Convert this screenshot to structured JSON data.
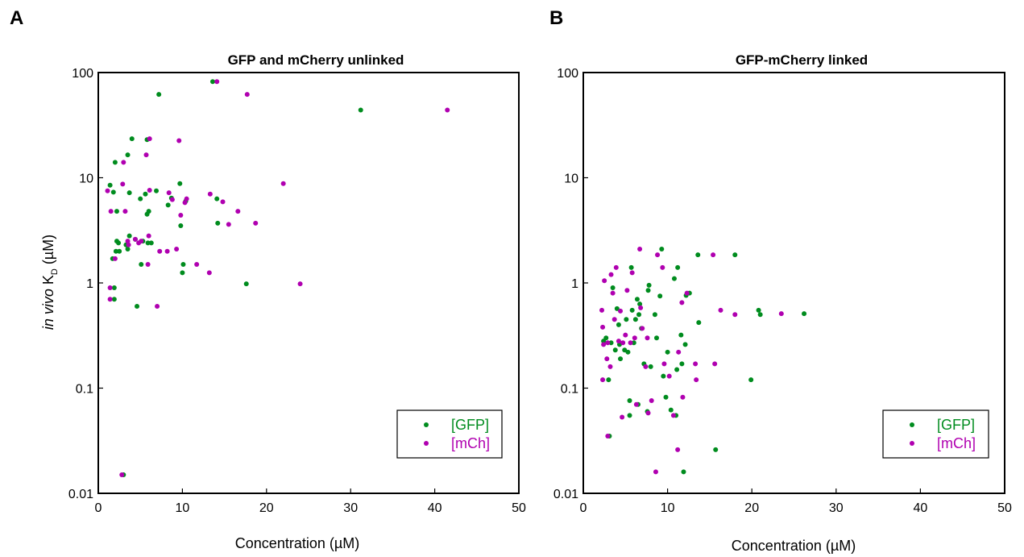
{
  "chart_data": [
    {
      "type": "scatter",
      "panel_label": "A",
      "title": "GFP and mCherry unlinked",
      "xlabel": "Concentration (µM)",
      "ylabel_italic": "in vivo",
      "ylabel_main": " K",
      "ylabel_sub": "D",
      "ylabel_unit": " (µM)",
      "xlim": [
        0,
        50
      ],
      "ylim": [
        0.01,
        100
      ],
      "yscale": "log",
      "x_ticks": [
        0,
        10,
        20,
        30,
        40,
        50
      ],
      "x_tick_labels": [
        "0",
        "10",
        "20",
        "30",
        "40",
        "50"
      ],
      "y_ticks": [
        0.01,
        0.1,
        1,
        10,
        100
      ],
      "y_tick_labels": [
        "0.01",
        "0.1",
        "1",
        "10",
        "100"
      ],
      "grid": false,
      "legend_position": "bottom-right",
      "series": [
        {
          "name": "[GFP]",
          "color": "#008c1e",
          "points": [
            [
              1.4,
              8.5
            ],
            [
              1.8,
              7.3
            ],
            [
              2.0,
              14.0
            ],
            [
              2.2,
              4.8
            ],
            [
              1.7,
              1.7
            ],
            [
              2.1,
              2.0
            ],
            [
              2.2,
              2.5
            ],
            [
              2.4,
              2.4
            ],
            [
              2.5,
              2.0
            ],
            [
              1.9,
              0.9
            ],
            [
              1.9,
              0.7
            ],
            [
              3.0,
              0.015
            ],
            [
              3.3,
              2.3
            ],
            [
              3.5,
              2.1
            ],
            [
              3.5,
              16.5
            ],
            [
              3.7,
              2.8
            ],
            [
              3.7,
              7.2
            ],
            [
              4.0,
              23.5
            ],
            [
              4.4,
              2.6
            ],
            [
              4.6,
              0.6
            ],
            [
              5.0,
              6.3
            ],
            [
              5.1,
              1.5
            ],
            [
              5.3,
              2.5
            ],
            [
              5.6,
              7.0
            ],
            [
              5.8,
              4.5
            ],
            [
              5.8,
              23.0
            ],
            [
              5.9,
              2.4
            ],
            [
              6.0,
              4.8
            ],
            [
              6.3,
              2.4
            ],
            [
              6.9,
              7.5
            ],
            [
              7.2,
              62.0
            ],
            [
              8.3,
              5.5
            ],
            [
              8.7,
              6.4
            ],
            [
              9.7,
              8.8
            ],
            [
              9.8,
              3.5
            ],
            [
              10.0,
              1.25
            ],
            [
              10.1,
              1.5
            ],
            [
              10.4,
              6.0
            ],
            [
              13.6,
              82.0
            ],
            [
              14.1,
              6.3
            ],
            [
              14.2,
              3.7
            ],
            [
              17.6,
              0.98
            ],
            [
              31.2,
              44.0
            ]
          ]
        },
        {
          "name": "[mCh]",
          "color": "#b000b0",
          "points": [
            [
              1.1,
              7.5
            ],
            [
              1.4,
              0.9
            ],
            [
              1.4,
              0.7
            ],
            [
              1.5,
              4.8
            ],
            [
              2.0,
              1.7
            ],
            [
              2.8,
              0.015
            ],
            [
              2.9,
              8.7
            ],
            [
              3.0,
              14.0
            ],
            [
              3.2,
              4.8
            ],
            [
              3.5,
              2.5
            ],
            [
              3.6,
              2.3
            ],
            [
              4.4,
              2.6
            ],
            [
              4.8,
              2.4
            ],
            [
              5.1,
              2.5
            ],
            [
              5.7,
              16.5
            ],
            [
              5.9,
              1.5
            ],
            [
              6.0,
              2.8
            ],
            [
              6.1,
              7.6
            ],
            [
              6.1,
              23.5
            ],
            [
              7.0,
              0.6
            ],
            [
              7.3,
              2.0
            ],
            [
              8.2,
              2.0
            ],
            [
              8.4,
              7.2
            ],
            [
              8.8,
              6.2
            ],
            [
              9.3,
              2.1
            ],
            [
              9.6,
              22.5
            ],
            [
              9.8,
              4.4
            ],
            [
              10.3,
              5.8
            ],
            [
              10.5,
              6.3
            ],
            [
              11.7,
              1.5
            ],
            [
              13.2,
              1.25
            ],
            [
              13.3,
              7.0
            ],
            [
              14.1,
              82.0
            ],
            [
              14.8,
              5.9
            ],
            [
              15.5,
              3.6
            ],
            [
              16.6,
              4.8
            ],
            [
              17.7,
              62.0
            ],
            [
              18.7,
              3.7
            ],
            [
              22.0,
              8.8
            ],
            [
              24.0,
              0.98
            ],
            [
              41.5,
              44.0
            ]
          ]
        }
      ]
    },
    {
      "type": "scatter",
      "panel_label": "B",
      "title": "GFP-mCherry linked",
      "xlabel": "Concentration (µM)",
      "xlim": [
        0,
        50
      ],
      "ylim": [
        0.01,
        100
      ],
      "yscale": "log",
      "x_ticks": [
        0,
        10,
        20,
        30,
        40,
        50
      ],
      "x_tick_labels": [
        "0",
        "10",
        "20",
        "30",
        "40",
        "50"
      ],
      "y_ticks": [
        0.01,
        0.1,
        1,
        10,
        100
      ],
      "y_tick_labels": [
        "0.01",
        "0.1",
        "1",
        "10",
        "100"
      ],
      "grid": false,
      "legend_position": "bottom-right",
      "series": [
        {
          "name": "[GFP]",
          "color": "#008c1e",
          "points": [
            [
              2.4,
              0.28
            ],
            [
              2.7,
              0.3
            ],
            [
              3.0,
              0.12
            ],
            [
              3.1,
              0.035
            ],
            [
              3.3,
              0.27
            ],
            [
              3.5,
              0.9
            ],
            [
              3.8,
              0.23
            ],
            [
              4.0,
              0.57
            ],
            [
              4.2,
              0.4
            ],
            [
              4.3,
              0.26
            ],
            [
              4.4,
              0.19
            ],
            [
              4.9,
              0.23
            ],
            [
              5.1,
              0.45
            ],
            [
              5.3,
              0.22
            ],
            [
              5.5,
              0.076
            ],
            [
              5.5,
              0.055
            ],
            [
              5.7,
              1.4
            ],
            [
              5.8,
              0.55
            ],
            [
              6.0,
              0.27
            ],
            [
              6.2,
              0.45
            ],
            [
              6.4,
              0.7
            ],
            [
              6.5,
              0.07
            ],
            [
              6.6,
              0.5
            ],
            [
              6.7,
              0.63
            ],
            [
              6.9,
              0.37
            ],
            [
              7.2,
              0.17
            ],
            [
              7.6,
              0.06
            ],
            [
              7.7,
              0.85
            ],
            [
              7.8,
              0.95
            ],
            [
              8.0,
              0.16
            ],
            [
              8.5,
              0.5
            ],
            [
              8.7,
              0.3
            ],
            [
              9.1,
              0.75
            ],
            [
              9.3,
              2.1
            ],
            [
              9.5,
              0.13
            ],
            [
              9.8,
              0.082
            ],
            [
              10.0,
              0.22
            ],
            [
              10.4,
              0.062
            ],
            [
              10.8,
              1.1
            ],
            [
              11.0,
              0.055
            ],
            [
              11.1,
              0.15
            ],
            [
              11.2,
              1.4
            ],
            [
              11.6,
              0.32
            ],
            [
              11.7,
              0.17
            ],
            [
              11.9,
              0.016
            ],
            [
              12.1,
              0.26
            ],
            [
              12.2,
              0.76
            ],
            [
              12.6,
              0.8
            ],
            [
              13.6,
              1.85
            ],
            [
              13.7,
              0.42
            ],
            [
              15.7,
              0.026
            ],
            [
              18.0,
              1.85
            ],
            [
              19.9,
              0.12
            ],
            [
              20.8,
              0.55
            ],
            [
              21.0,
              0.5
            ],
            [
              26.2,
              0.51
            ]
          ]
        },
        {
          "name": "[mCh]",
          "color": "#b000b0",
          "points": [
            [
              2.2,
              0.55
            ],
            [
              2.3,
              0.38
            ],
            [
              2.3,
              0.12
            ],
            [
              2.4,
              0.26
            ],
            [
              2.5,
              1.05
            ],
            [
              2.8,
              0.19
            ],
            [
              2.9,
              0.035
            ],
            [
              2.9,
              0.27
            ],
            [
              3.2,
              0.16
            ],
            [
              3.3,
              1.2
            ],
            [
              3.5,
              0.8
            ],
            [
              3.7,
              0.45
            ],
            [
              3.9,
              1.4
            ],
            [
              4.2,
              0.28
            ],
            [
              4.4,
              0.54
            ],
            [
              4.6,
              0.053
            ],
            [
              4.7,
              0.27
            ],
            [
              5.0,
              0.32
            ],
            [
              5.2,
              0.85
            ],
            [
              5.6,
              0.27
            ],
            [
              5.8,
              1.25
            ],
            [
              6.1,
              0.3
            ],
            [
              6.3,
              0.07
            ],
            [
              6.7,
              2.1
            ],
            [
              6.8,
              0.58
            ],
            [
              7.0,
              0.37
            ],
            [
              7.4,
              0.16
            ],
            [
              7.6,
              0.3
            ],
            [
              7.7,
              0.058
            ],
            [
              8.1,
              0.076
            ],
            [
              8.6,
              0.016
            ],
            [
              8.8,
              1.85
            ],
            [
              9.4,
              1.4
            ],
            [
              9.6,
              0.17
            ],
            [
              10.2,
              0.13
            ],
            [
              10.7,
              0.055
            ],
            [
              11.2,
              0.026
            ],
            [
              11.3,
              0.22
            ],
            [
              11.7,
              0.65
            ],
            [
              11.8,
              0.082
            ],
            [
              12.3,
              0.8
            ],
            [
              13.3,
              0.17
            ],
            [
              13.4,
              0.12
            ],
            [
              15.4,
              1.85
            ],
            [
              15.6,
              0.17
            ],
            [
              16.3,
              0.55
            ],
            [
              18.0,
              0.5
            ],
            [
              23.5,
              0.51
            ]
          ]
        }
      ]
    }
  ]
}
